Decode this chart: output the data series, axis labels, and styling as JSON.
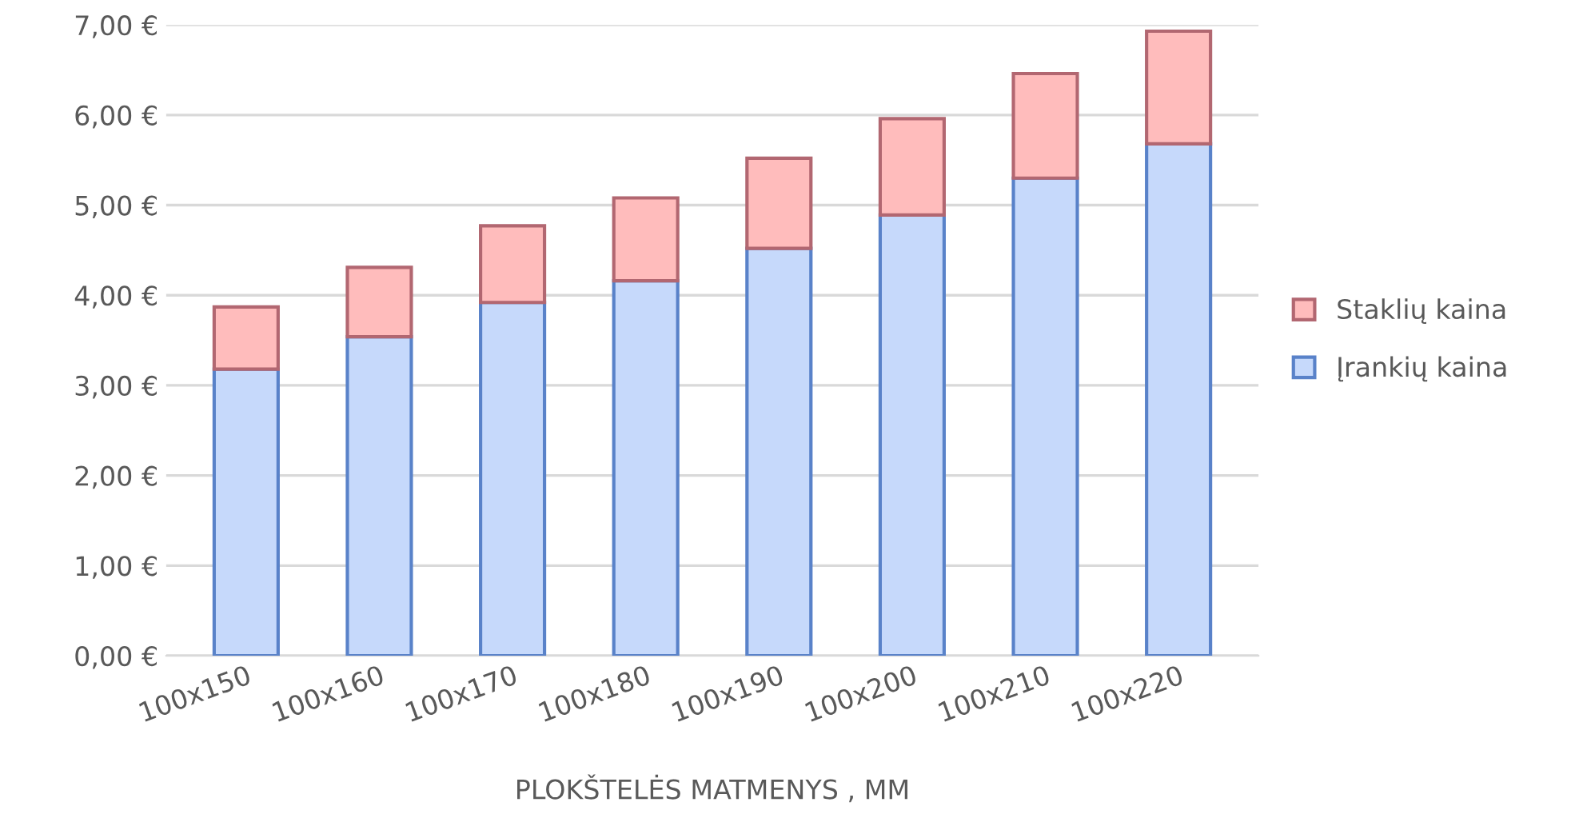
{
  "chart_data": {
    "type": "bar",
    "stacked": true,
    "xlabel": "PLOKŠTELĖS MATMENYS , MM",
    "categories": [
      "100x150",
      "100x160",
      "100x170",
      "100x180",
      "100x190",
      "100x200",
      "100x210",
      "100x220"
    ],
    "series": [
      {
        "name": "Įrankių kaina",
        "color": "#c6d9fb",
        "values": [
          3.18,
          3.54,
          3.92,
          4.16,
          4.52,
          4.89,
          5.3,
          5.68
        ]
      },
      {
        "name": "Staklių kaina",
        "color": "#ffbcbc",
        "values": [
          0.69,
          0.77,
          0.85,
          0.92,
          1.0,
          1.07,
          1.16,
          1.25
        ]
      }
    ],
    "ylim": [
      0,
      7
    ],
    "yticks": [
      {
        "value": 0,
        "label": "0,00 €"
      },
      {
        "value": 1,
        "label": "1,00 €"
      },
      {
        "value": 2,
        "label": "2,00 €"
      },
      {
        "value": 3,
        "label": "3,00 €"
      },
      {
        "value": 4,
        "label": "4,00 €"
      },
      {
        "value": 5,
        "label": "5,00 €"
      },
      {
        "value": 6,
        "label": "6,00 €"
      },
      {
        "value": 7,
        "label": "7,00 €"
      }
    ],
    "grid": "y",
    "legend": "right"
  }
}
